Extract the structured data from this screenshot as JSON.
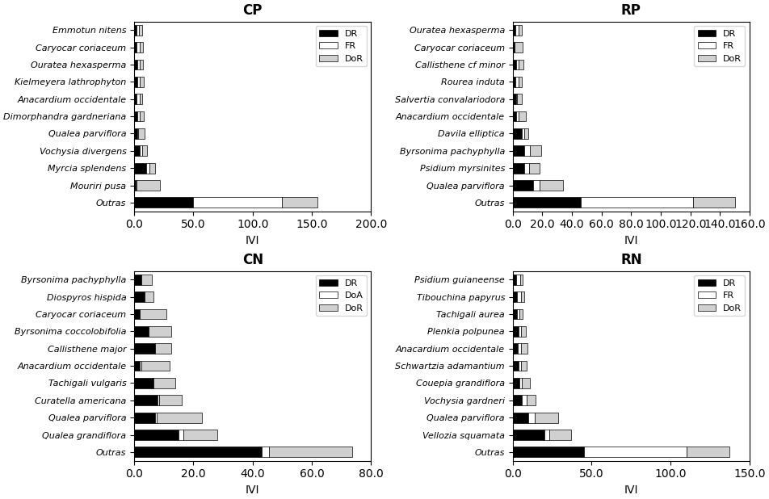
{
  "chart_data": [
    {
      "type": "bar",
      "orientation": "horizontal",
      "stacked": true,
      "title": "CP",
      "categories": [
        "Emmotun nitens",
        "Caryocar coriaceum",
        "Ouratea hexasperma",
        "Kielmeyera lathrophyton",
        "Anacardium occidentale",
        "Dimorphandra gardneriana",
        "Qualea parviflora",
        "Vochysia divergens",
        "Myrcia splendens",
        "Mouriri pusa",
        "Outras"
      ],
      "series": [
        {
          "name": "DR",
          "color": "#000000",
          "values": [
            2.0,
            2.0,
            2.5,
            2.5,
            2.0,
            2.5,
            2.5,
            5.0,
            10.0,
            1.0,
            50.0
          ]
        },
        {
          "name": "FR",
          "color": "#ffffff",
          "values": [
            2.0,
            2.5,
            2.0,
            2.5,
            2.5,
            2.5,
            1.0,
            2.0,
            3.0,
            1.0,
            75.0
          ]
        },
        {
          "name": "DoR",
          "color": "#d0d0d0",
          "values": [
            3.0,
            3.0,
            3.0,
            3.0,
            2.5,
            3.0,
            5.5,
            3.5,
            4.5,
            20.0,
            30.0
          ]
        }
      ],
      "xlabel": "IVI",
      "xlim": [
        0,
        200
      ],
      "xticks": [
        {
          "value": 0,
          "label": "0.0"
        },
        {
          "value": 50,
          "label": "50.0"
        },
        {
          "value": 100,
          "label": "100.0"
        },
        {
          "value": 150,
          "label": "150.0"
        },
        {
          "value": 200,
          "label": "200.0"
        }
      ],
      "legend": "upper right"
    },
    {
      "type": "bar",
      "orientation": "horizontal",
      "stacked": true,
      "title": "RP",
      "categories": [
        "Ouratea hexasperma",
        "Caryocar coriaceum",
        "Callisthene cf minor",
        "Rourea induta",
        "Salvertia convalariodora",
        "Anacardium occidentale",
        "Davila elliptica",
        "Byrsonima pachyphylla",
        "Psidium myrsinites",
        "Qualea parviflora",
        "Outras"
      ],
      "series": [
        {
          "name": "DR",
          "color": "#000000",
          "values": [
            2.0,
            1.0,
            2.5,
            2.0,
            2.5,
            2.5,
            6.0,
            8.0,
            8.0,
            14.0,
            46.0
          ]
        },
        {
          "name": "FR",
          "color": "#ffffff",
          "values": [
            2.0,
            0.5,
            1.5,
            2.0,
            0.5,
            1.5,
            2.0,
            3.5,
            3.0,
            4.0,
            76.0
          ]
        },
        {
          "name": "DoR",
          "color": "#d0d0d0",
          "values": [
            2.0,
            5.0,
            3.5,
            2.0,
            3.0,
            5.0,
            2.5,
            8.0,
            7.0,
            16.0,
            28.0
          ]
        }
      ],
      "xlabel": "IVI",
      "xlim": [
        0,
        160
      ],
      "xticks": [
        {
          "value": 0,
          "label": "0.0"
        },
        {
          "value": 20,
          "label": "20.0"
        },
        {
          "value": 40,
          "label": "40.0"
        },
        {
          "value": 60,
          "label": "60.0"
        },
        {
          "value": 80,
          "label": "80.0"
        },
        {
          "value": 100,
          "label": "100.0"
        },
        {
          "value": 120,
          "label": "120.0"
        },
        {
          "value": 140,
          "label": "140.0"
        },
        {
          "value": 160,
          "label": "160.0"
        }
      ],
      "legend": "upper right"
    },
    {
      "type": "bar",
      "orientation": "horizontal",
      "stacked": true,
      "title": "CN",
      "categories": [
        "Byrsonima pachyphylla",
        "Diospyros hispida",
        "Caryocar coriaceum",
        "Byrsonima coccolobifolia",
        "Callisthene major",
        "Anacardium occidentale",
        "Tachigali vulgaris",
        "Curatella americana",
        "Qualea parviflora",
        "Qualea grandiflora",
        "Outras"
      ],
      "series": [
        {
          "name": "DR",
          "color": "#000000",
          "values": [
            2.5,
            3.5,
            2.0,
            5.0,
            7.0,
            2.0,
            6.5,
            8.0,
            7.0,
            15.0,
            43.0
          ]
        },
        {
          "name": "DoA",
          "color": "#ffffff",
          "values": [
            0.0,
            0.0,
            0.0,
            0.0,
            0.0,
            0.5,
            0.0,
            0.5,
            0.5,
            1.5,
            2.5
          ]
        },
        {
          "name": "DoR",
          "color": "#d0d0d0",
          "values": [
            3.5,
            3.0,
            9.0,
            7.5,
            5.5,
            9.5,
            7.5,
            7.5,
            15.5,
            11.5,
            28.0
          ]
        }
      ],
      "xlabel": "IVI",
      "xlim": [
        0,
        80
      ],
      "xticks": [
        {
          "value": 0,
          "label": "0.0"
        },
        {
          "value": 20,
          "label": "20.0"
        },
        {
          "value": 40,
          "label": "40.0"
        },
        {
          "value": 60,
          "label": "60.0"
        },
        {
          "value": 80,
          "label": "80.0"
        }
      ],
      "legend": "upper right"
    },
    {
      "type": "bar",
      "orientation": "horizontal",
      "stacked": true,
      "title": "RN",
      "categories": [
        "Psidium guianeense",
        "Tibouchina papyrus",
        "Tachigali aurea",
        "Plenkia polpunea",
        "Anacardium occidentale",
        "Schwartzia adamantium",
        "Couepia grandiflora",
        "Vochysia gardneri",
        "Qualea parviflora",
        "Vellozia squamata",
        "Outras"
      ],
      "series": [
        {
          "name": "DR",
          "color": "#000000",
          "values": [
            2.0,
            2.5,
            2.5,
            3.5,
            3.0,
            3.5,
            4.0,
            6.0,
            10.0,
            20.0,
            45.0
          ]
        },
        {
          "name": "FR",
          "color": "#ffffff",
          "values": [
            2.5,
            2.5,
            1.5,
            2.0,
            2.5,
            1.5,
            2.0,
            3.0,
            4.0,
            3.0,
            65.0
          ]
        },
        {
          "name": "DoR",
          "color": "#d0d0d0",
          "values": [
            2.0,
            2.5,
            2.5,
            3.0,
            4.0,
            4.0,
            5.0,
            5.5,
            15.0,
            14.0,
            27.0
          ]
        }
      ],
      "xlabel": "IVI",
      "xlim": [
        0,
        150
      ],
      "xticks": [
        {
          "value": 0,
          "label": "0.0"
        },
        {
          "value": 50,
          "label": "50.0"
        },
        {
          "value": 100,
          "label": "100.0"
        },
        {
          "value": 150,
          "label": "150.0"
        }
      ],
      "legend": "upper right"
    }
  ]
}
